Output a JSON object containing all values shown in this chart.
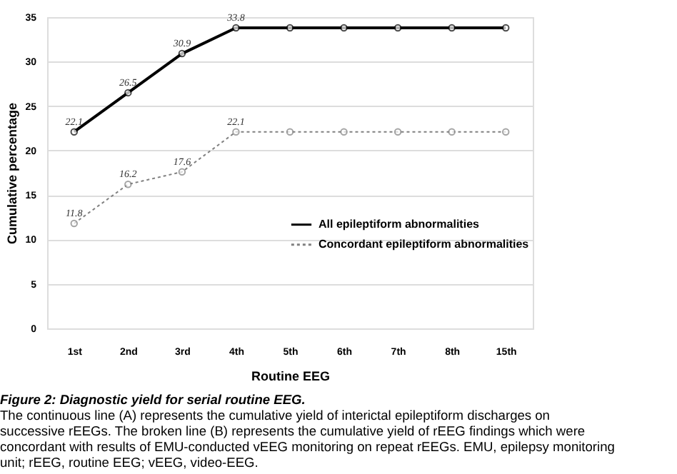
{
  "chart_data": {
    "type": "line",
    "xlabel": "Routine EEG",
    "ylabel": "Cumulative percentage",
    "categories": [
      "1st",
      "2nd",
      "3rd",
      "4th",
      "5th",
      "6th",
      "7th",
      "8th",
      "15th"
    ],
    "series": [
      {
        "name": "All epileptiform abnormalities",
        "color": "#000000",
        "line_style": "solid",
        "values": [
          22.1,
          26.5,
          30.9,
          33.8,
          33.8,
          33.8,
          33.8,
          33.8,
          33.8
        ],
        "value_labels": [
          "22.1",
          "26.5",
          "30.9",
          "33.8",
          null,
          null,
          null,
          null,
          null
        ]
      },
      {
        "name": "Concordant epileptiform abnormalities",
        "color": "#808080",
        "line_style": "dotted",
        "values": [
          11.8,
          16.2,
          17.6,
          22.1,
          22.1,
          22.1,
          22.1,
          22.1,
          22.1
        ],
        "value_labels": [
          "11.8",
          "16.2",
          "17.6",
          "22.1",
          null,
          null,
          null,
          null,
          null
        ]
      }
    ],
    "ylim": [
      0,
      35
    ],
    "yticks": [
      0,
      5,
      10,
      15,
      20,
      25,
      30,
      35
    ],
    "grid": "y",
    "marker": "circle",
    "legend": "right",
    "annotations": [
      "Figure 2:  Diagnostic yield for serial routine EEG.",
      "The continuous line (A) represents the cumulative yield of interictal epileptiform discharges on",
      "successive rEEGs.  The broken line (B) represents the cumulative yield of rEEG findings which were",
      "concordant with results of EMU-conducted vEEG monitoring on repeat rEEGs.  EMU, epilepsy monitoring",
      "unit; rEEG, routine EEG; vEEG, video-EEG."
    ]
  }
}
